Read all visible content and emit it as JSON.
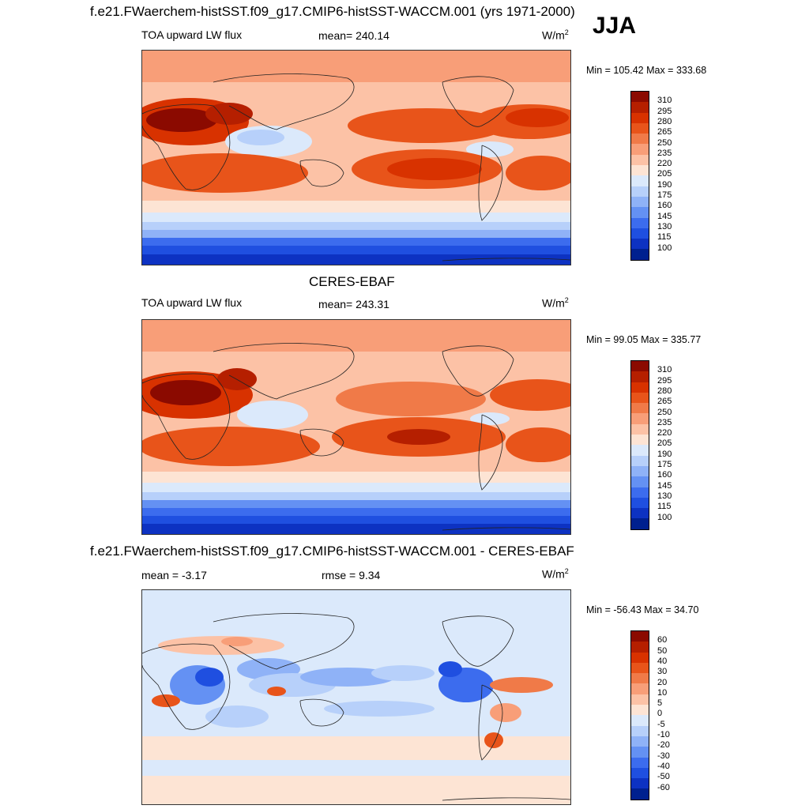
{
  "season": "JJA",
  "panels": [
    {
      "title": "f.e21.FWaerchem-histSST.f09_g17.CMIP6-histSST-WACCM.001 (yrs 1971-2000)",
      "left_label": "TOA upward LW flux",
      "center_label": "mean= 240.14",
      "units": "W/m",
      "units_sup": "2",
      "minmax": "Min = 105.42 Max = 333.68",
      "colorbar_key": "abs"
    },
    {
      "title": "CERES-EBAF",
      "left_label": "TOA upward LW flux",
      "center_label": "mean= 243.31",
      "units": "W/m",
      "units_sup": "2",
      "minmax": "Min =  99.05 Max = 335.77",
      "colorbar_key": "abs"
    },
    {
      "title": "f.e21.FWaerchem-histSST.f09_g17.CMIP6-histSST-WACCM.001 - CERES-EBAF",
      "left_label": "mean =  -3.17",
      "center_label": "rmse =    9.34",
      "units": "W/m",
      "units_sup": "2",
      "minmax": "Min = -56.43 Max =  34.70",
      "colorbar_key": "diff"
    }
  ],
  "colorbars": {
    "abs": {
      "labels": [
        "310",
        "295",
        "280",
        "265",
        "250",
        "235",
        "220",
        "205",
        "190",
        "175",
        "160",
        "145",
        "130",
        "115",
        "100"
      ],
      "colors": [
        "#8b0a00",
        "#b51f00",
        "#d83200",
        "#e8541a",
        "#f07a48",
        "#f89e78",
        "#fcc2a6",
        "#fde4d4",
        "#dbe9fb",
        "#b7d0fa",
        "#8fb2f7",
        "#6491f3",
        "#3c6cee",
        "#1f4fe0",
        "#0d32c2",
        "#00208f"
      ]
    },
    "diff": {
      "labels": [
        "60",
        "50",
        "40",
        "30",
        "20",
        "10",
        "5",
        "0",
        "-5",
        "-10",
        "-20",
        "-30",
        "-40",
        "-50",
        "-60"
      ],
      "colors": [
        "#8b0a00",
        "#b51f00",
        "#d83200",
        "#e8541a",
        "#f07a48",
        "#f89e78",
        "#fcc2a6",
        "#fde4d4",
        "#dbe9fb",
        "#b7d0fa",
        "#8fb2f7",
        "#6491f3",
        "#3c6cee",
        "#1f4fe0",
        "#0d32c2",
        "#00208f"
      ]
    }
  },
  "chart_data": [
    {
      "type": "heatmap",
      "title": "f.e21.FWaerchem-histSST.f09_g17.CMIP6-histSST-WACCM.001 (yrs 1971-2000)",
      "variable": "TOA upward LW flux",
      "units": "W/m2",
      "season": "JJA",
      "mean": 240.14,
      "min": 105.42,
      "max": 333.68,
      "contour_levels": [
        100,
        115,
        130,
        145,
        160,
        175,
        190,
        205,
        220,
        235,
        250,
        265,
        280,
        295,
        310
      ]
    },
    {
      "type": "heatmap",
      "title": "CERES-EBAF",
      "variable": "TOA upward LW flux",
      "units": "W/m2",
      "mean": 243.31,
      "min": 99.05,
      "max": 335.77,
      "contour_levels": [
        100,
        115,
        130,
        145,
        160,
        175,
        190,
        205,
        220,
        235,
        250,
        265,
        280,
        295,
        310
      ]
    },
    {
      "type": "heatmap",
      "title": "f.e21.FWaerchem-histSST.f09_g17.CMIP6-histSST-WACCM.001 - CERES-EBAF",
      "units": "W/m2",
      "mean": -3.17,
      "rmse": 9.34,
      "min": -56.43,
      "max": 34.7,
      "contour_levels": [
        -60,
        -50,
        -40,
        -30,
        -20,
        -10,
        -5,
        0,
        5,
        10,
        20,
        30,
        40,
        50,
        60
      ]
    }
  ]
}
